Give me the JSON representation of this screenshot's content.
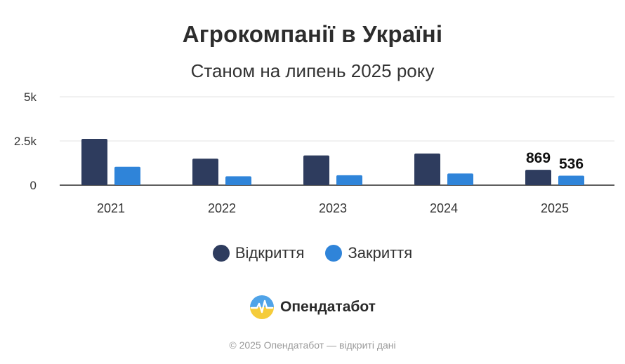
{
  "header": {
    "title": "Агрокомпанії в Україні",
    "subtitle": "Станом на липень 2025 року"
  },
  "chart_data": {
    "type": "bar",
    "title": "Агрокомпанії в Україні",
    "subtitle": "Станом на липень 2025 року",
    "xlabel": "",
    "ylabel": "",
    "categories": [
      "2021",
      "2022",
      "2023",
      "2024",
      "2025"
    ],
    "series": [
      {
        "name": "Відкриття",
        "color": "#2e3c5e",
        "values": [
          2620,
          1500,
          1680,
          1790,
          869
        ]
      },
      {
        "name": "Закриття",
        "color": "#2f84d9",
        "values": [
          1040,
          500,
          560,
          660,
          536
        ]
      }
    ],
    "data_labels": [
      {
        "category": "2025",
        "series": "Відкриття",
        "text": "869"
      },
      {
        "category": "2025",
        "series": "Закриття",
        "text": "536"
      }
    ],
    "ylim": [
      0,
      5000
    ],
    "yticks": [
      {
        "value": 0,
        "label": "0"
      },
      {
        "value": 2500,
        "label": "2.5k"
      },
      {
        "value": 5000,
        "label": "5k"
      }
    ],
    "grid": true,
    "legend_position": "bottom-center"
  },
  "brand": {
    "name": "Опендатабот",
    "logo_icon": "opendatabot-logo-icon"
  },
  "footer": {
    "text": "© 2025 Опендатабот — відкриті дані"
  }
}
